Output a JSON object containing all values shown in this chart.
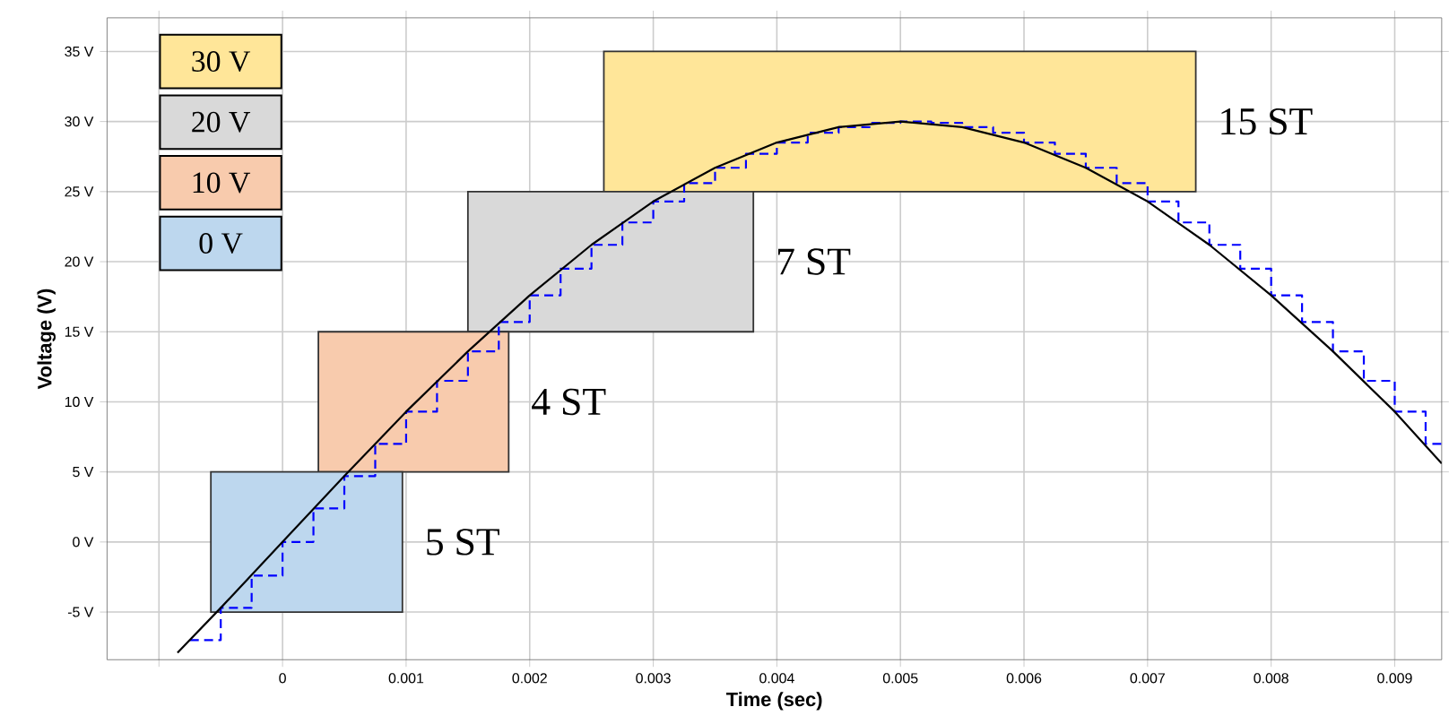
{
  "chart_data": {
    "type": "line",
    "xlabel": "Time (sec)",
    "ylabel": "Voltage (V)",
    "xlim": [
      -0.00142,
      0.00938
    ],
    "ylim": [
      -8.4,
      37.4
    ],
    "xticks": [
      {
        "value": -0.001,
        "label": null
      },
      0,
      0.001,
      0.002,
      0.003,
      0.004,
      0.005,
      0.006,
      0.007,
      0.008,
      0.009
    ],
    "yticks": [
      {
        "value": -5,
        "label": "-5 V"
      },
      {
        "value": 0,
        "label": "0 V"
      },
      {
        "value": 5,
        "label": "5 V"
      },
      {
        "value": 10,
        "label": "10 V"
      },
      {
        "value": 15,
        "label": "15 V"
      },
      {
        "value": 20,
        "label": "20 V"
      },
      {
        "value": 25,
        "label": "25 V"
      },
      {
        "value": 30,
        "label": "30 V"
      },
      {
        "value": 35,
        "label": "35 V"
      }
    ],
    "grid": true,
    "legend": "top left",
    "marker": "none",
    "series": [
      {
        "name": "30 V",
        "type": "area",
        "color": "#ffe699",
        "x": [
          0.0026,
          0.00739,
          0.00739,
          0.0026
        ],
        "values": [
          25,
          25,
          35,
          35
        ]
      },
      {
        "name": "20 V",
        "type": "area",
        "color": "#d9d9d9",
        "x": [
          0.0015,
          0.00381,
          0.00381,
          0.0015
        ],
        "values": [
          15,
          15,
          25,
          25
        ]
      },
      {
        "name": "10 V",
        "type": "area",
        "color": "#f8cbad",
        "x": [
          0.00029,
          0.00183,
          0.00183,
          0.00029
        ],
        "values": [
          5,
          5,
          15,
          15
        ]
      },
      {
        "name": "0 V",
        "type": "area",
        "color": "#bdd7ee",
        "x": [
          -0.00058,
          0.00097,
          0.00097,
          -0.00058
        ],
        "values": [
          -5,
          -5,
          5,
          5
        ]
      },
      {
        "type": "step",
        "color": "#0000ff",
        "line_style": "dashed",
        "x": [
          -0.00075,
          -0.0005,
          -0.00025,
          0,
          0.00025,
          0.0005,
          0.00075,
          0.001,
          0.00125,
          0.0015,
          0.00175,
          0.002,
          0.00225,
          0.0025,
          0.00275,
          0.003,
          0.00325,
          0.0035,
          0.00375,
          0.004,
          0.00425,
          0.0045,
          0.00475,
          0.005,
          0.00525,
          0.0055,
          0.00575,
          0.006,
          0.00625,
          0.0065,
          0.00675,
          0.007,
          0.00725,
          0.0075,
          0.00775,
          0.008,
          0.00825,
          0.0085,
          0.00875,
          0.009,
          0.00925,
          0.00938
        ],
        "values": [
          -7.0,
          -4.7,
          -2.4,
          0,
          2.4,
          4.7,
          7.0,
          9.3,
          11.5,
          13.6,
          15.7,
          17.6,
          19.5,
          21.2,
          22.8,
          24.3,
          25.6,
          26.7,
          27.7,
          28.5,
          29.2,
          29.6,
          29.9,
          30,
          29.9,
          29.6,
          29.2,
          28.5,
          27.7,
          26.7,
          25.6,
          24.3,
          22.8,
          21.2,
          19.5,
          17.6,
          15.7,
          13.6,
          11.5,
          9.3,
          7.0,
          7.0
        ]
      },
      {
        "color": "#000000",
        "line_style": "solid",
        "x": [
          -0.00085,
          -0.0005,
          0,
          0.0005,
          0.001,
          0.0015,
          0.002,
          0.0025,
          0.003,
          0.0035,
          0.004,
          0.0045,
          0.005,
          0.0055,
          0.006,
          0.0065,
          0.007,
          0.0075,
          0.008,
          0.0085,
          0.009,
          0.00938
        ],
        "values": [
          -7.9,
          -4.7,
          0,
          4.7,
          9.3,
          13.6,
          17.6,
          21.2,
          24.3,
          26.7,
          28.5,
          29.6,
          30,
          29.6,
          28.5,
          26.7,
          24.3,
          21.2,
          17.6,
          13.6,
          9.3,
          5.6
        ]
      }
    ],
    "annotations": [
      "5 ST",
      "4 ST",
      "7 ST",
      "15 ST"
    ]
  }
}
